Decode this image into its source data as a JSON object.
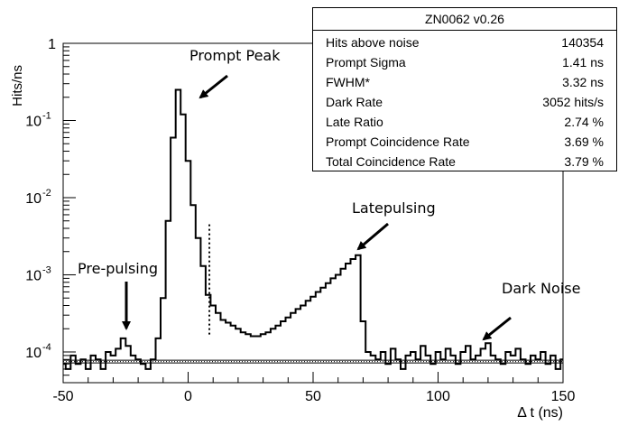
{
  "chart_data": {
    "type": "line",
    "title": "",
    "xlabel": "Δ t (ns)",
    "ylabel": "Hits/ns",
    "xlim": [
      -50,
      150
    ],
    "ylim": [
      4e-05,
      1
    ],
    "yscale": "log",
    "grid": false,
    "x_ticks": [
      "-50",
      "0",
      "50",
      "100",
      "150"
    ],
    "y_ticks": [
      {
        "value": 1,
        "label": "1"
      },
      {
        "value": 0.1,
        "label": "10",
        "exp": "-1"
      },
      {
        "value": 0.01,
        "label": "10",
        "exp": "-2"
      },
      {
        "value": 0.001,
        "label": "10",
        "exp": "-3"
      },
      {
        "value": 0.0001,
        "label": "10",
        "exp": "-4"
      }
    ],
    "dark_noise_level": 7.5e-05,
    "cut_line_x": 8.5,
    "series": [
      {
        "x": [
          -50,
          -48,
          -46,
          -44,
          -42,
          -40,
          -38,
          -36,
          -34,
          -32,
          -30,
          -28,
          -26,
          -24,
          -22,
          -20,
          -18,
          -16,
          -14,
          -12,
          -10,
          -8,
          -6,
          -4,
          -2,
          0,
          2,
          4,
          6,
          8,
          10,
          12,
          14,
          16,
          18,
          20,
          22,
          24,
          26,
          28,
          30,
          32,
          34,
          36,
          38,
          40,
          42,
          44,
          46,
          48,
          50,
          52,
          54,
          56,
          58,
          60,
          62,
          64,
          66,
          68,
          70,
          72,
          74,
          76,
          78,
          80,
          82,
          84,
          86,
          88,
          90,
          92,
          94,
          96,
          98,
          100,
          102,
          104,
          106,
          108,
          110,
          112,
          114,
          116,
          118,
          120,
          122,
          124,
          126,
          128,
          130,
          132,
          134,
          136,
          138,
          140,
          142,
          144,
          146,
          148,
          150
        ],
        "values": [
          7e-05,
          6e-05,
          9e-05,
          7e-05,
          8e-05,
          6e-05,
          9e-05,
          8e-05,
          6e-05,
          0.0001,
          9e-05,
          0.00011,
          0.00015,
          0.00012,
          9e-05,
          8e-05,
          7e-05,
          6e-05,
          8e-05,
          0.00015,
          0.0005,
          0.005,
          0.06,
          0.25,
          0.12,
          0.03,
          0.008,
          0.003,
          0.0013,
          0.00055,
          0.0004,
          0.00032,
          0.00026,
          0.00024,
          0.00022,
          0.0002,
          0.00018,
          0.00017,
          0.00016,
          0.00016,
          0.00017,
          0.00018,
          0.0002,
          0.00022,
          0.00025,
          0.00028,
          0.00032,
          0.00036,
          0.0004,
          0.00046,
          0.00052,
          0.0006,
          0.00068,
          0.00078,
          0.0009,
          0.001,
          0.0012,
          0.0014,
          0.0016,
          0.0018,
          0.00025,
          0.0001,
          9e-05,
          8e-05,
          0.0001,
          7e-05,
          0.00011,
          8e-05,
          6e-05,
          9e-05,
          0.0001,
          8e-05,
          0.00012,
          9e-05,
          7e-05,
          0.0001,
          8e-05,
          0.00011,
          9e-05,
          7e-05,
          0.0001,
          0.00012,
          8e-05,
          9e-05,
          0.00011,
          0.00013,
          9e-05,
          8e-05,
          7e-05,
          0.0001,
          9e-05,
          0.00011,
          8e-05,
          7e-05,
          9e-05,
          8e-05,
          0.0001,
          7e-05,
          9e-05,
          6e-05,
          8e-05
        ]
      }
    ]
  },
  "stats": {
    "title": "ZN0062 v0.26",
    "rows": [
      {
        "label": "Hits above noise",
        "value": "140354"
      },
      {
        "label": "Prompt Sigma",
        "value": "1.41 ns"
      },
      {
        "label": "FWHM*",
        "value": "3.32 ns"
      },
      {
        "label": "Dark Rate",
        "value": "3052 hits/s"
      },
      {
        "label": "Late Ratio",
        "value": "2.74 %"
      },
      {
        "label": "Prompt Coincidence Rate",
        "value": "3.69 %"
      },
      {
        "label": "Total Coincidence Rate",
        "value": "3.79 %"
      }
    ]
  },
  "annotations": {
    "prompt_peak": "Prompt Peak",
    "latepulsing": "Latepulsing",
    "prepulsing": "Pre-pulsing",
    "dark_noise": "Dark Noise"
  }
}
